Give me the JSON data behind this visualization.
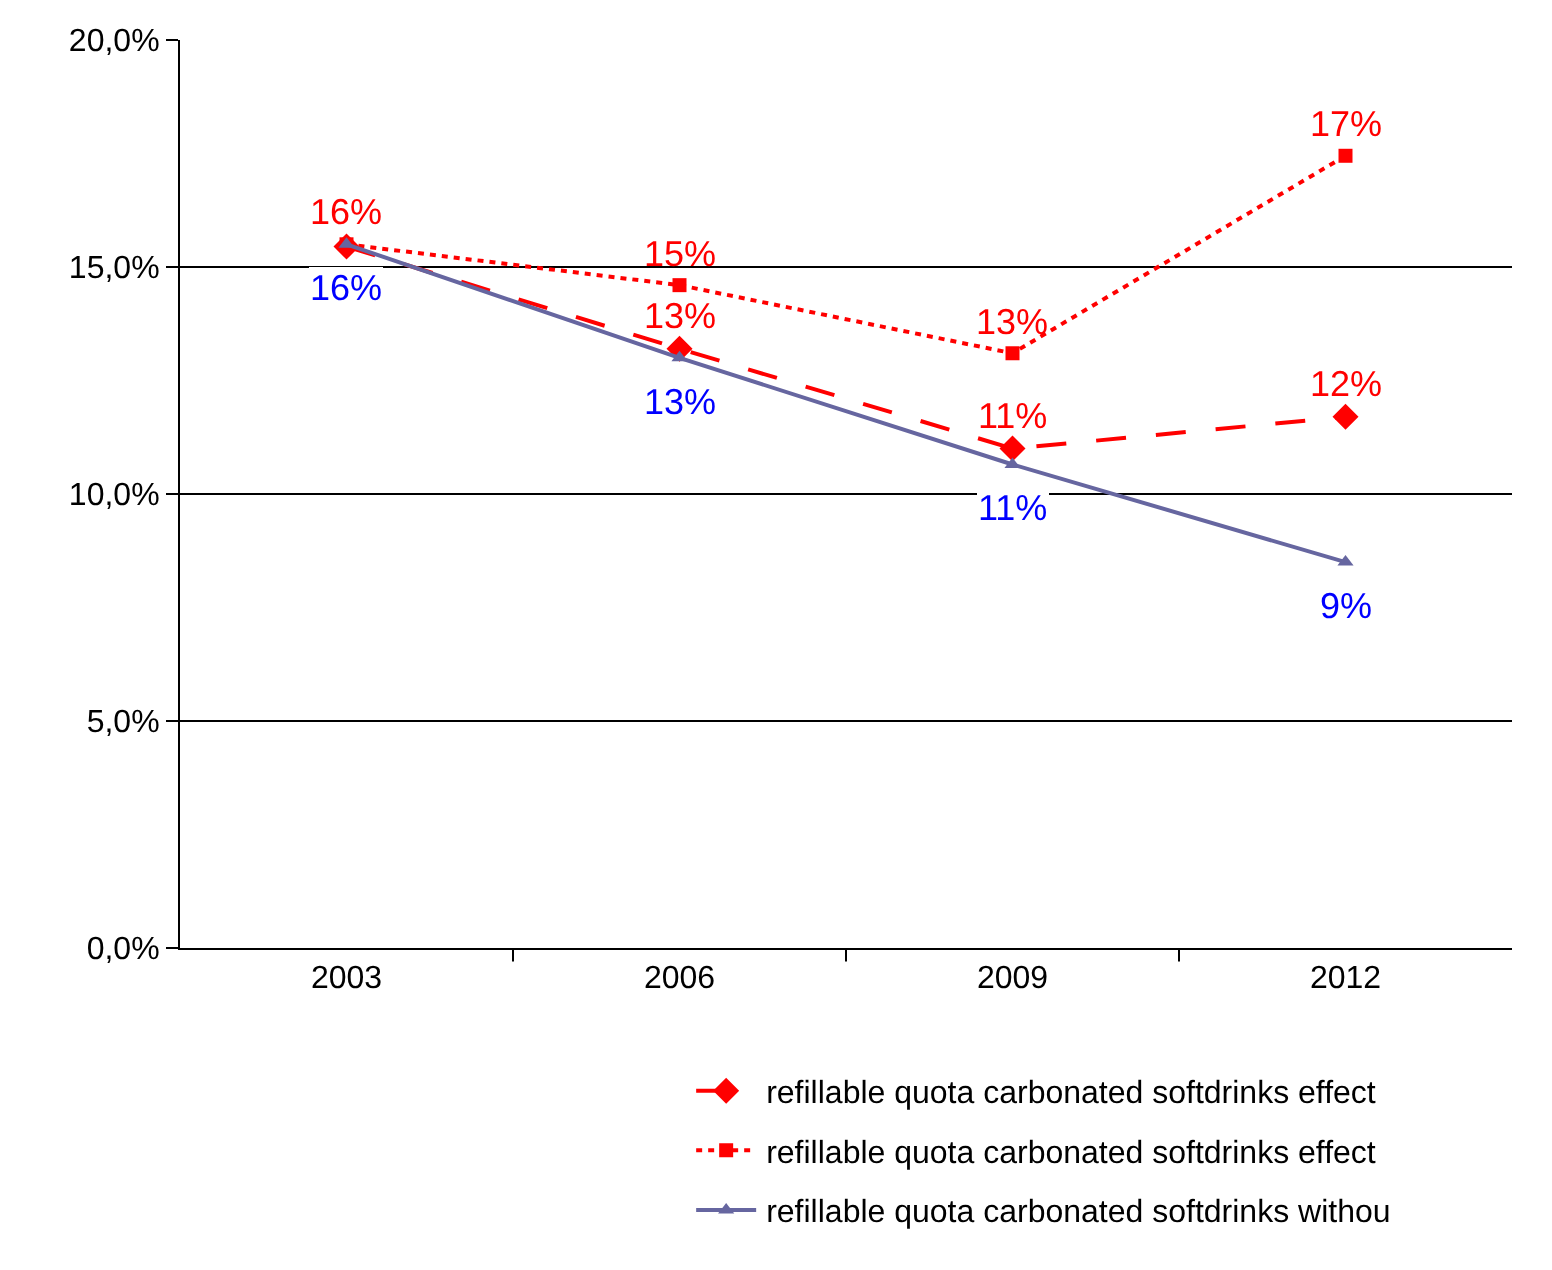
{
  "chart_data": {
    "type": "line",
    "categories": [
      "2003",
      "2006",
      "2009",
      "2012"
    ],
    "series": [
      {
        "name": "refillable quota carbonated softdrinks effect",
        "color": "#ff0000",
        "marker": "diamond",
        "line_style": "dashed",
        "values": [
          15.45,
          13.2,
          11.0,
          11.7
        ],
        "value_labels": [
          null,
          "13%",
          "11%",
          "12%"
        ]
      },
      {
        "name": "refillable quota carbonated softdrinks effect",
        "color": "#ff0000",
        "marker": "square",
        "line_style": "dotted",
        "values": [
          15.5,
          14.6,
          13.1,
          17.45
        ],
        "value_labels": [
          "16%",
          "15%",
          "13%",
          "17%"
        ]
      },
      {
        "name": "refillable quota carbonated softdrinks withou",
        "color": "#6666a0",
        "marker": "triangle",
        "line_style": "solid",
        "values": [
          15.5,
          13.0,
          10.65,
          8.5
        ],
        "value_labels": [
          "16%",
          "13%",
          "11%",
          "9%"
        ]
      }
    ],
    "ylim": [
      0,
      20
    ],
    "yticks": [
      {
        "value": 0,
        "label": "0,0%"
      },
      {
        "value": 5,
        "label": "5,0%"
      },
      {
        "value": 10,
        "label": "10,0%"
      },
      {
        "value": 15,
        "label": "15,0%"
      },
      {
        "value": 20,
        "label": "20,0%"
      }
    ],
    "grid": "y",
    "legend": "bottom"
  }
}
